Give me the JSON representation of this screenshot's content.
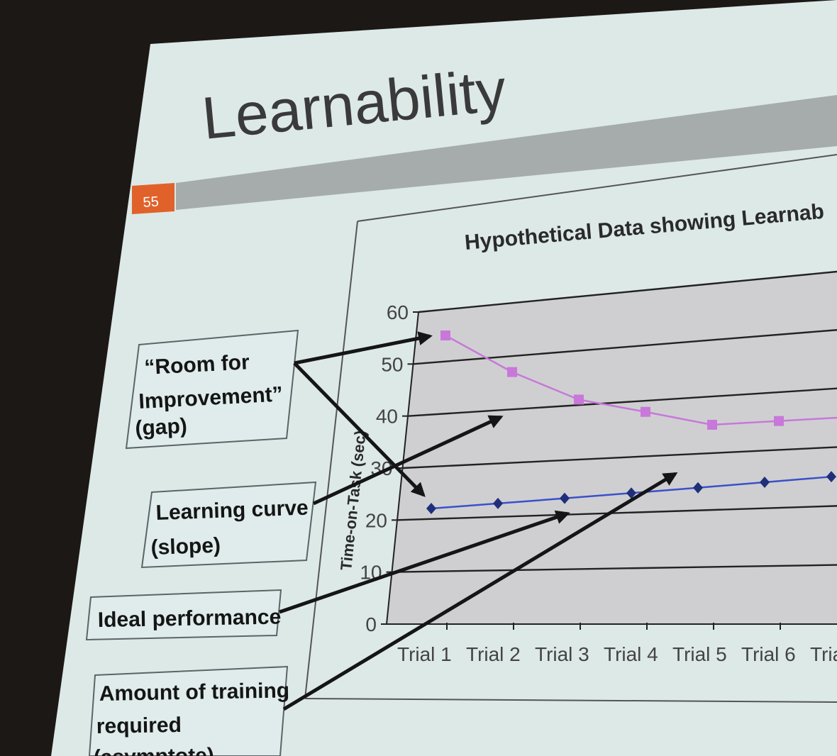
{
  "slide": {
    "title": "Learnability",
    "slide_number": "55",
    "accent_color": "#e0622a",
    "bar_color": "#a6abab"
  },
  "chart_data": {
    "type": "line",
    "title": "Hypothetical Data showing Learnab",
    "ylabel": "Time-on-Task (sec)",
    "xlabel": "",
    "categories": [
      "Trial 1",
      "Trial 2",
      "Trial 3",
      "Trial 4",
      "Trial 5",
      "Trial 6",
      "Trial"
    ],
    "ylim": [
      0,
      60
    ],
    "yticks": [
      "0",
      "10",
      "20",
      "30",
      "40",
      "50",
      "60"
    ],
    "grid": true,
    "series": [
      {
        "values": [
          55,
          47,
          41,
          38,
          35,
          35,
          35
        ],
        "color": "#c878d8",
        "marker": "square"
      },
      {
        "values": [
          22,
          22.5,
          23,
          23.5,
          24,
          24.5,
          25
        ],
        "color": "#3b50c8",
        "marker": "diamond"
      }
    ]
  },
  "callouts": [
    {
      "lines": [
        "“Room for",
        "Improvement”",
        "(gap)"
      ]
    },
    {
      "lines": [
        "Learning curve",
        "(slope)"
      ]
    },
    {
      "lines": [
        "Ideal performance"
      ]
    },
    {
      "lines": [
        "Amount of training",
        "required",
        "(asymptote)"
      ]
    }
  ]
}
